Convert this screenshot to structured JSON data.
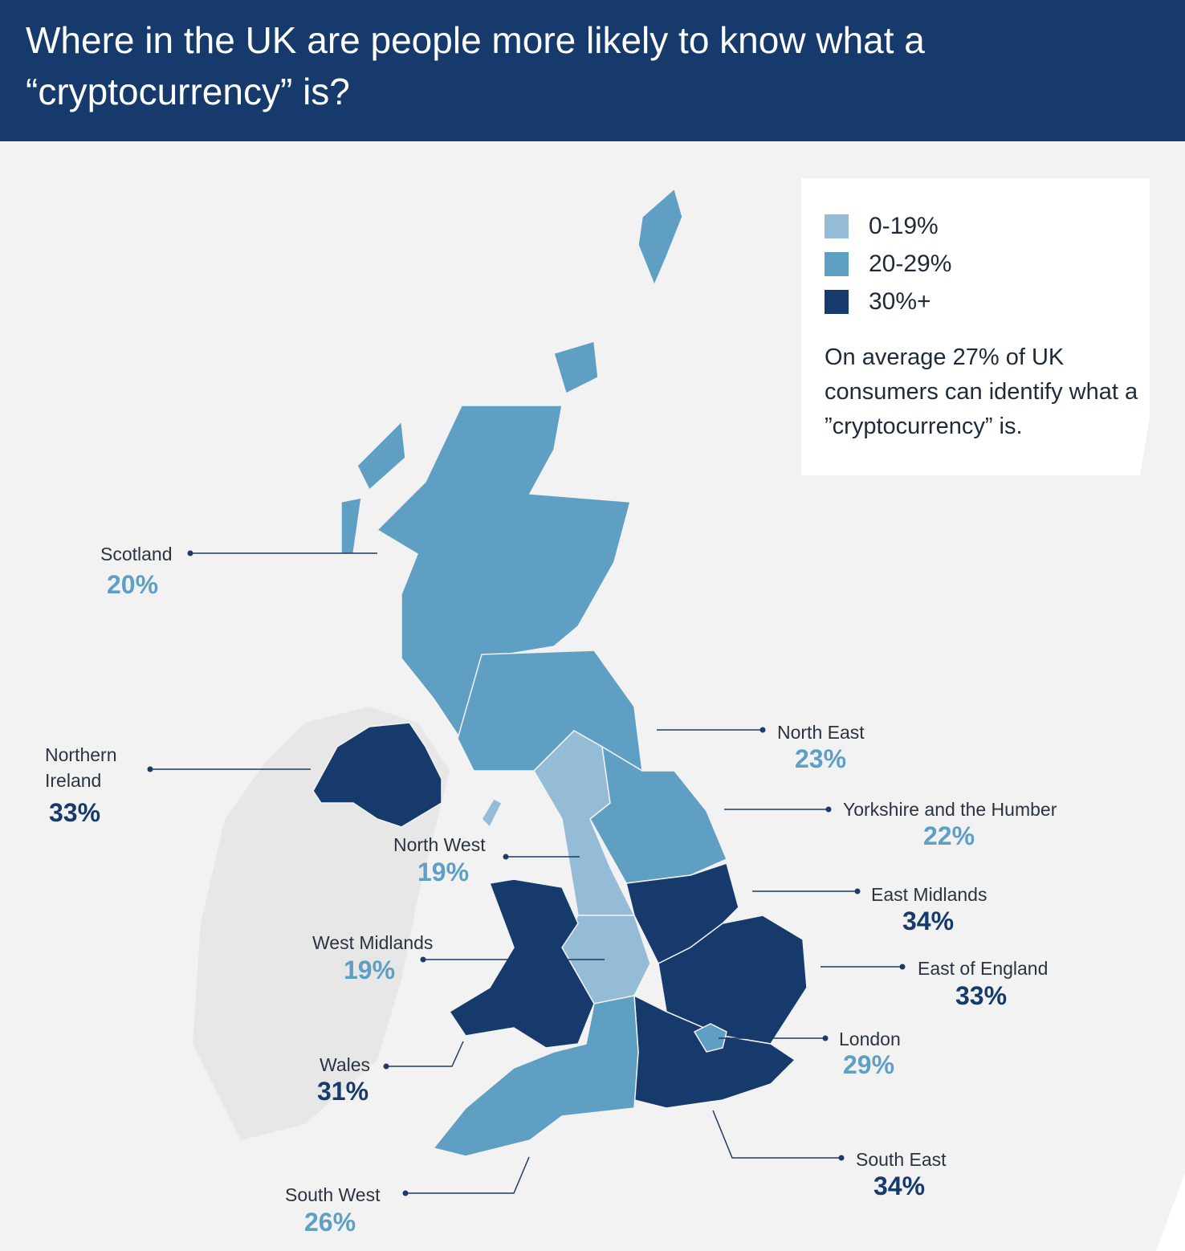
{
  "header": {
    "title": "Where in the UK are people more likely to know what a “cryptocurrency” is?"
  },
  "legend": [
    {
      "label": "0-19%",
      "color": "#94bcd6"
    },
    {
      "label": "20-29%",
      "color": "#5f9fc4"
    },
    {
      "label": "30%+",
      "color": "#163a6b"
    }
  ],
  "note": "On average 27% of UK consumers can identify what a ”cryptocurrency” is.",
  "regions": [
    {
      "name": "Scotland",
      "value": "20%",
      "color": "#5f9fc4"
    },
    {
      "name": "Northern Ireland",
      "value": "33%",
      "color": "#163a6b"
    },
    {
      "name": "North East",
      "value": "23%",
      "color": "#5f9fc4"
    },
    {
      "name": "Yorkshire and the Humber",
      "value": "22%",
      "color": "#5f9fc4"
    },
    {
      "name": "North West",
      "value": "19%",
      "color": "#94bcd6"
    },
    {
      "name": "West Midlands",
      "value": "19%",
      "color": "#94bcd6"
    },
    {
      "name": "East Midlands",
      "value": "34%",
      "color": "#163a6b"
    },
    {
      "name": "East of England",
      "value": "33%",
      "color": "#163a6b"
    },
    {
      "name": "Wales",
      "value": "31%",
      "color": "#163a6b"
    },
    {
      "name": "London",
      "value": "29%",
      "color": "#5f9fc4"
    },
    {
      "name": "South East",
      "value": "34%",
      "color": "#163a6b"
    },
    {
      "name": "South West",
      "value": "26%",
      "color": "#5f9fc4"
    }
  ]
}
